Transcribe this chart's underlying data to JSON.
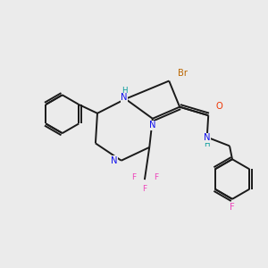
{
  "bg_color": "#ebebeb",
  "bond_color": "#1a1a1a",
  "bond_width": 1.4,
  "atom_colors": {
    "N": "#1010ee",
    "O": "#ee3300",
    "Br": "#bb6600",
    "F": "#ee44bb",
    "H": "#009999",
    "C": "#1a1a1a"
  },
  "figsize": [
    3.0,
    3.0
  ],
  "dpi": 100
}
